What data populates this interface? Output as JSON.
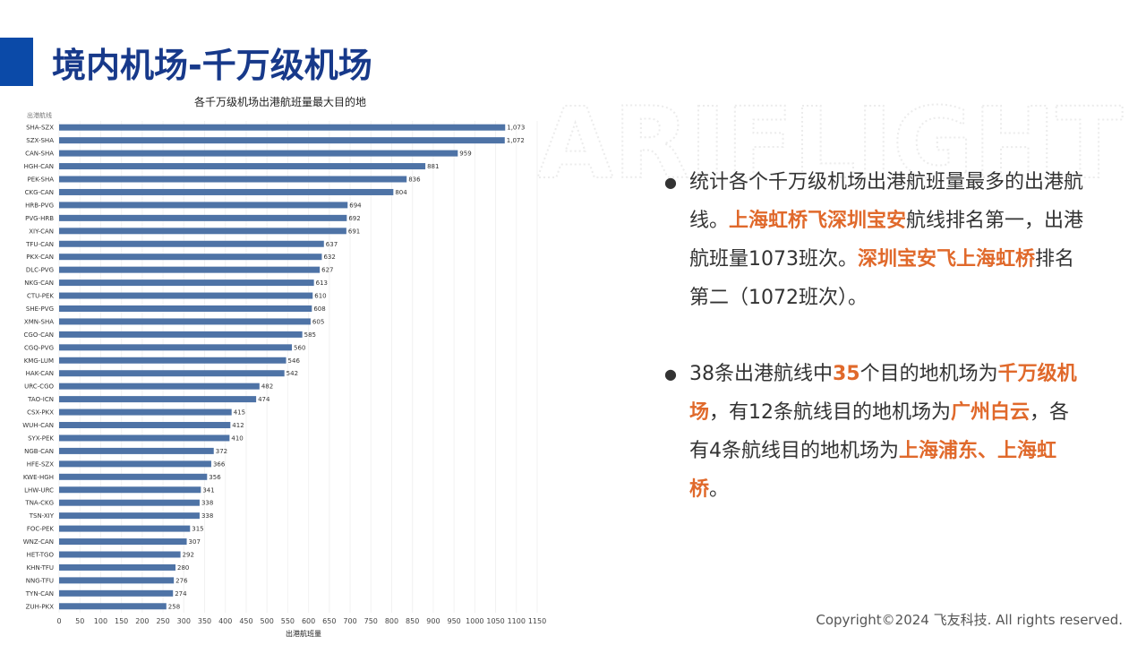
{
  "slide_title": "境内机场-千万级机场",
  "watermark": "ARIFLIGHT",
  "bullets": [
    {
      "segments": [
        {
          "text": "统计各个千万级机场出港航班量最多的出港航线。"
        },
        {
          "text": "上海虹桥飞深圳宝安",
          "color": "#e0692b"
        },
        {
          "text": "航线排名第一，出港航班量1073班次。"
        },
        {
          "text": "深圳宝安飞上海虹桥",
          "color": "#e0692b"
        },
        {
          "text": "排名第二（1072班次）。"
        }
      ]
    },
    {
      "segments": [
        {
          "text": "38条出港航线中"
        },
        {
          "text": "35",
          "color": "#e0692b"
        },
        {
          "text": "个目的地机场为"
        },
        {
          "text": "千万级机场",
          "color": "#e0692b"
        },
        {
          "text": "，有12条航线目的地机场为"
        },
        {
          "text": "广州白云",
          "color": "#e0692b"
        },
        {
          "text": "，各有4条航线目的地机场为"
        },
        {
          "text": "上海浦东、上海虹桥",
          "color": "#e0692b"
        },
        {
          "text": "。"
        }
      ]
    }
  ],
  "footer": "Copyright©2024 飞友科技. All rights reserved.",
  "chart_data": {
    "type": "hbar",
    "title": "各千万级机场出港航班量最大目的地",
    "y_label": "出港航线",
    "x_label": "出港航班量",
    "color": "#4e73a6",
    "grid": true,
    "categories": [
      "SHA-SZX",
      "SZX-SHA",
      "CAN-SHA",
      "HGH-CAN",
      "PEK-SHA",
      "CKG-CAN",
      "HRB-PVG",
      "PVG-HRB",
      "XIY-CAN",
      "TFU-CAN",
      "PKX-CAN",
      "DLC-PVG",
      "NKG-CAN",
      "CTU-PEK",
      "SHE-PVG",
      "XMN-SHA",
      "CGO-CAN",
      "CGQ-PVG",
      "KMG-LUM",
      "HAK-CAN",
      "URC-CGO",
      "TAO-ICN",
      "CSX-PKX",
      "WUH-CAN",
      "SYX-PEK",
      "NGB-CAN",
      "HFE-SZX",
      "KWE-HGH",
      "LHW-URC",
      "TNA-CKG",
      "TSN-XIY",
      "FOC-PEK",
      "WNZ-CAN",
      "HET-TGO",
      "KHN-TFU",
      "NNG-TFU",
      "TYN-CAN",
      "ZUH-PKX"
    ],
    "values": [
      1073,
      1072,
      959,
      881,
      836,
      804,
      694,
      692,
      691,
      637,
      632,
      627,
      613,
      610,
      608,
      605,
      585,
      560,
      546,
      542,
      482,
      474,
      415,
      412,
      410,
      372,
      366,
      356,
      341,
      338,
      338,
      315,
      307,
      292,
      280,
      276,
      274,
      258
    ],
    "value_labels": [
      "1,073",
      "1,072",
      "959",
      "881",
      "836",
      "804",
      "694",
      "692",
      "691",
      "637",
      "632",
      "627",
      "613",
      "610",
      "608",
      "605",
      "585",
      "560",
      "546",
      "542",
      "482",
      "474",
      "415",
      "412",
      "410",
      "372",
      "366",
      "356",
      "341",
      "338",
      "338",
      "315",
      "307",
      "292",
      "280",
      "276",
      "274",
      "258"
    ],
    "xlim": [
      0,
      1150
    ],
    "xticks": [
      0,
      50,
      100,
      150,
      200,
      250,
      300,
      350,
      400,
      450,
      500,
      550,
      600,
      650,
      700,
      750,
      800,
      850,
      900,
      950,
      1000,
      1050,
      1100,
      1150
    ]
  }
}
